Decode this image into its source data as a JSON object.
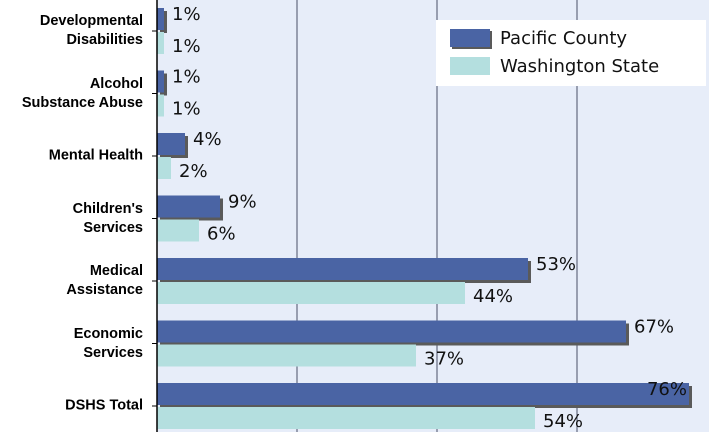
{
  "chart_data": {
    "type": "bar",
    "orientation": "horizontal",
    "categories": [
      "Developmental\nDisabilities",
      "Alcohol\nSubstance Abuse",
      "Mental Health",
      "Children's\nServices",
      "Medical\nAssistance",
      "Economic\nServices",
      "DSHS Total"
    ],
    "series": [
      {
        "name": "Pacific County",
        "color": "#4a64a4",
        "values": [
          1,
          1,
          4,
          9,
          53,
          67,
          76
        ],
        "value_labels": [
          "1%",
          "1%",
          "4%",
          "9%",
          "53%",
          "67%",
          "76%"
        ]
      },
      {
        "name": "Washington State",
        "color": "#b4dfdf",
        "values": [
          1,
          1,
          2,
          6,
          44,
          37,
          54
        ],
        "value_labels": [
          "1%",
          "1%",
          "2%",
          "6%",
          "44%",
          "37%",
          "54%"
        ]
      }
    ],
    "xlim": [
      0,
      80
    ],
    "xticks": [
      20,
      40,
      60
    ],
    "grid": true,
    "legend": "upper right"
  }
}
